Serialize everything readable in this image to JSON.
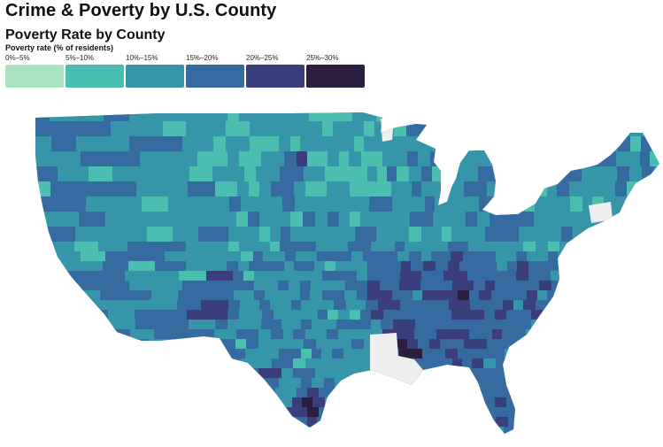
{
  "title": "Crime & Poverty by U.S. County",
  "subtitle": "Poverty Rate by County",
  "legend": {
    "title": "Poverty rate (% of residents)",
    "bins": [
      {
        "label": "0%–5%",
        "color": "#a7e3bf"
      },
      {
        "label": "5%–10%",
        "color": "#4bbfaf"
      },
      {
        "label": "10%–15%",
        "color": "#3795a9"
      },
      {
        "label": "15%–20%",
        "color": "#356ba0"
      },
      {
        "label": "20%–25%",
        "color": "#3b3e7d"
      },
      {
        "label": "25%–30%",
        "color": "#2c1e3f"
      }
    ]
  },
  "map": {
    "region": "contiguous United States",
    "encoding": "county choropleth by poverty rate",
    "no_data_color": "#eeeeee"
  }
}
